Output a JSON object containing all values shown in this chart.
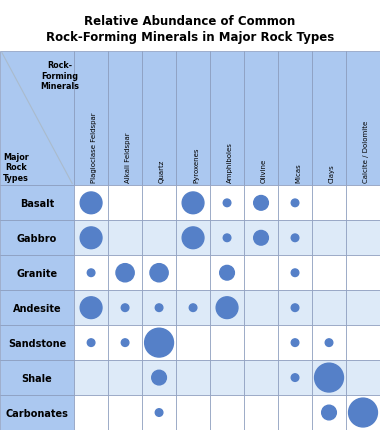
{
  "title": "Relative Abundance of Common\nRock-Forming Minerals in Major Rock Types",
  "minerals": [
    "Plagioclase Feldspar",
    "Alkali Feldspar",
    "Quartz",
    "Pyroxenes",
    "Amphiboles",
    "Olivine",
    "Micas",
    "Clays",
    "Calcite / Dolomite"
  ],
  "rock_types": [
    "Basalt",
    "Gabbro",
    "Granite",
    "Andesite",
    "Sandstone",
    "Shale",
    "Carbonates"
  ],
  "dot_sizes": [
    [
      3,
      0,
      0,
      3,
      1,
      2,
      1,
      0,
      0
    ],
    [
      3,
      0,
      0,
      3,
      1,
      2,
      1,
      0,
      0
    ],
    [
      1,
      2.5,
      2.5,
      0,
      2,
      0,
      1,
      0,
      0
    ],
    [
      3,
      1,
      1,
      1,
      3,
      0,
      1,
      0,
      0
    ],
    [
      1,
      1,
      4,
      0,
      0,
      0,
      1,
      1,
      0
    ],
    [
      0,
      0,
      2,
      0,
      0,
      0,
      1,
      4,
      0
    ],
    [
      0,
      0,
      1,
      0,
      0,
      0,
      0,
      2,
      4
    ]
  ],
  "dot_color": "#5580c8",
  "dot_color_fill": "#5b87d4",
  "header_bg": "#abc8f0",
  "row_label_bg": "#abc8f0",
  "row_bg_white": "#ffffff",
  "row_bg_light": "#ddeaf8",
  "grid_color": "#8899bb",
  "title_color": "#000000",
  "corner_label_top": "Rock-\nForming\nMinerals",
  "corner_label_bottom": "Major\nRock\nTypes",
  "diagonal_color": "#aabbcc"
}
